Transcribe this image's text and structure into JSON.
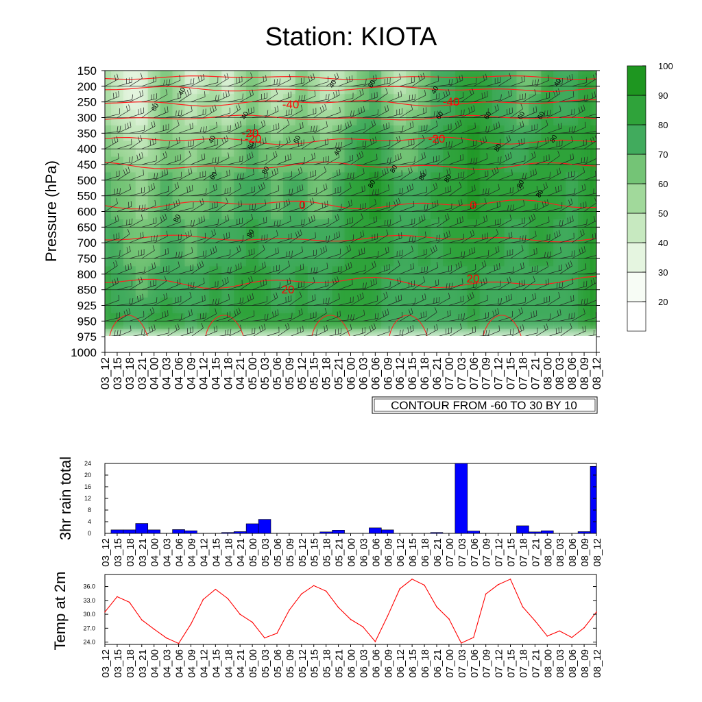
{
  "chart_data": [
    {
      "type": "heatmap",
      "title": "Station: KIOTA",
      "ylabel": "Pressure (hPa)",
      "xlabel": "",
      "time_labels": [
        "03_12",
        "03_15",
        "03_18",
        "03_21",
        "04_00",
        "04_03",
        "04_06",
        "04_09",
        "04_12",
        "04_15",
        "04_18",
        "04_21",
        "05_00",
        "05_03",
        "05_06",
        "05_09",
        "05_12",
        "05_15",
        "05_18",
        "05_21",
        "06_00",
        "06_03",
        "06_06",
        "06_09",
        "06_12",
        "06_15",
        "06_18",
        "06_21",
        "07_00",
        "07_03",
        "07_06",
        "07_09",
        "07_12",
        "07_15",
        "07_18",
        "07_21",
        "08_00",
        "08_03",
        "08_06",
        "08_09",
        "08_12"
      ],
      "pressure_levels": [
        150,
        200,
        250,
        300,
        350,
        400,
        450,
        500,
        550,
        600,
        650,
        700,
        750,
        800,
        850,
        925,
        950,
        975,
        1000
      ],
      "fill_variable": "relative humidity",
      "fill_colorbar_labels": [
        "20",
        "30",
        "40",
        "50",
        "60",
        "70",
        "80",
        "90",
        "100"
      ],
      "fill_colors": [
        "#ffffff",
        "#f7fcf5",
        "#e5f5e0",
        "#c7e9c0",
        "#a1d99b",
        "#74c476",
        "#41ab5d",
        "#2fa33a",
        "#1e9620"
      ],
      "contour_variable": "temperature",
      "contour_info": "CONTOUR FROM -60 TO 30 BY 10",
      "temperature_contour_labels": [
        "-40",
        "-40",
        "-20",
        "-20",
        "-20",
        "0",
        "0",
        "20",
        "20"
      ],
      "rh_contour_labels": [
        "40",
        "40",
        "40",
        "40",
        "40",
        "40",
        "40",
        "60",
        "60",
        "60",
        "60",
        "60",
        "60",
        "60",
        "60",
        "60",
        "80",
        "80",
        "80",
        "80",
        "80",
        "80",
        "80",
        "80",
        "80",
        "80",
        "80"
      ],
      "rh_values": [
        [
          55,
          45,
          30,
          35,
          50,
          60,
          50,
          35,
          45,
          50,
          35,
          55,
          65,
          50,
          40,
          45,
          60,
          55,
          40,
          45,
          50,
          60,
          70,
          55,
          45,
          50,
          60,
          70,
          75,
          80,
          85,
          80,
          75,
          70,
          60,
          65,
          80,
          75,
          70,
          80,
          85
        ],
        [
          60,
          50,
          45,
          40,
          55,
          65,
          55,
          50,
          55,
          60,
          50,
          60,
          70,
          60,
          55,
          60,
          65,
          60,
          55,
          60,
          70,
          75,
          80,
          70,
          60,
          65,
          70,
          75,
          80,
          85,
          90,
          85,
          80,
          75,
          70,
          75,
          85,
          80,
          80,
          85,
          90
        ],
        [
          70,
          65,
          60,
          55,
          60,
          70,
          65,
          60,
          65,
          70,
          65,
          70,
          75,
          70,
          65,
          70,
          70,
          65,
          65,
          70,
          80,
          85,
          90,
          80,
          70,
          70,
          75,
          80,
          85,
          90,
          95,
          90,
          85,
          80,
          80,
          85,
          85,
          80,
          80,
          90,
          95
        ],
        [
          75,
          70,
          65,
          60,
          65,
          70,
          70,
          65,
          70,
          75,
          70,
          75,
          80,
          75,
          70,
          75,
          75,
          70,
          70,
          75,
          80,
          85,
          90,
          85,
          75,
          75,
          80,
          80,
          85,
          85,
          90,
          85,
          85,
          80,
          80,
          85,
          85,
          80,
          75,
          85,
          90
        ],
        [
          80,
          75,
          70,
          65,
          70,
          75,
          70,
          70,
          75,
          80,
          75,
          80,
          85,
          80,
          75,
          75,
          80,
          75,
          75,
          80,
          85,
          85,
          85,
          80,
          75,
          80,
          80,
          75,
          80,
          80,
          85,
          80,
          80,
          75,
          75,
          80,
          80,
          75,
          70,
          85,
          90
        ],
        [
          85,
          80,
          75,
          75,
          80,
          85,
          80,
          75,
          80,
          85,
          80,
          85,
          85,
          80,
          80,
          80,
          85,
          80,
          80,
          85,
          85,
          80,
          80,
          75,
          70,
          70,
          75,
          70,
          75,
          75,
          80,
          75,
          75,
          70,
          70,
          75,
          75,
          75,
          70,
          80,
          90
        ]
      ]
    },
    {
      "type": "bar",
      "ylabel": "3hr rain total",
      "categories": [
        "03_12",
        "03_15",
        "03_18",
        "03_21",
        "04_00",
        "04_03",
        "04_06",
        "04_09",
        "04_12",
        "04_15",
        "04_18",
        "04_21",
        "05_00",
        "05_03",
        "05_06",
        "05_09",
        "05_12",
        "05_15",
        "05_18",
        "05_21",
        "06_00",
        "06_03",
        "06_06",
        "06_09",
        "06_12",
        "06_15",
        "06_18",
        "06_21",
        "07_00",
        "07_03",
        "07_06",
        "07_09",
        "07_12",
        "07_15",
        "07_18",
        "07_21",
        "08_00",
        "08_03",
        "08_06",
        "08_09",
        "08_12"
      ],
      "values": [
        0,
        1.2,
        1.2,
        3.4,
        1.2,
        0,
        1.3,
        0.9,
        0,
        0,
        0.3,
        0.6,
        3.3,
        4.8,
        0,
        0,
        0,
        0,
        0.5,
        1.1,
        0,
        0,
        1.9,
        1.2,
        0,
        0,
        0,
        0.3,
        0,
        24,
        0.8,
        0,
        0,
        0,
        2.6,
        0.5,
        0.9,
        0,
        0,
        0.6,
        23
      ],
      "ylim": [
        0,
        24
      ],
      "yticks": [
        "0",
        "4",
        "8",
        "12",
        "16",
        "20",
        "24"
      ],
      "color": "#0000ff"
    },
    {
      "type": "line",
      "ylabel": "Temp at 2m",
      "categories": [
        "03_12",
        "03_15",
        "03_18",
        "03_21",
        "04_00",
        "04_03",
        "04_06",
        "04_09",
        "04_12",
        "04_15",
        "04_18",
        "04_21",
        "05_00",
        "05_03",
        "05_06",
        "05_09",
        "05_12",
        "05_15",
        "05_18",
        "05_21",
        "06_00",
        "06_03",
        "06_06",
        "06_09",
        "06_12",
        "06_15",
        "06_18",
        "06_21",
        "07_00",
        "07_03",
        "07_06",
        "07_09",
        "07_12",
        "07_15",
        "07_18",
        "07_21",
        "08_00",
        "08_03",
        "08_06",
        "08_09",
        "08_12"
      ],
      "values": [
        30.5,
        33.8,
        32.6,
        28.8,
        26.8,
        24.9,
        23.7,
        27.9,
        33.2,
        35.4,
        33.4,
        30.0,
        28.3,
        24.9,
        25.9,
        30.9,
        34.4,
        36.2,
        35.0,
        31.5,
        28.9,
        27.3,
        24.1,
        29.6,
        35.5,
        37.6,
        36.3,
        31.6,
        29.0,
        23.8,
        25.0,
        34.4,
        36.4,
        37.6,
        31.6,
        28.6,
        25.3,
        26.4,
        25.0,
        27.1,
        30.5
      ],
      "ylim": [
        23.5,
        38.6
      ],
      "yticks": [
        "24.0",
        "27.0",
        "30.0",
        "33.0",
        "36.0"
      ],
      "color": "#ff0000"
    }
  ]
}
